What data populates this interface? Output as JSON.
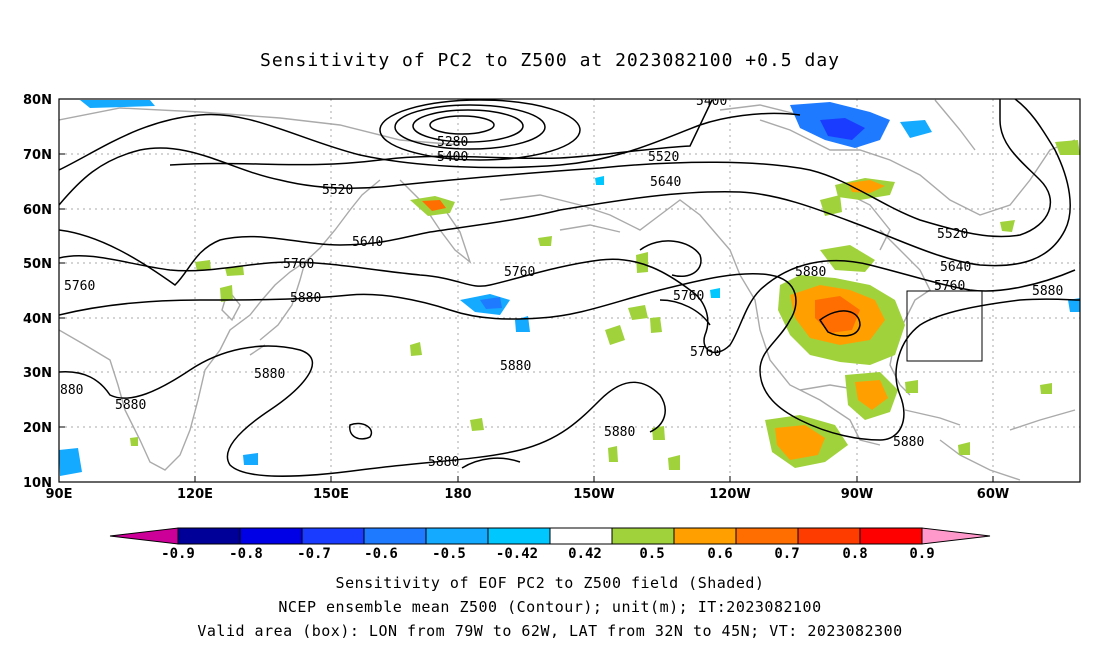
{
  "title": "Sensitivity of PC2 to Z500 at 2023082100 +0.5 day",
  "map": {
    "lat_labels": [
      "80N",
      "70N",
      "60N",
      "50N",
      "40N",
      "30N",
      "20N",
      "10N"
    ],
    "lon_labels": [
      "90E",
      "120E",
      "150E",
      "180",
      "150W",
      "120W",
      "90W",
      "60W"
    ],
    "contour_labels": [
      "5400",
      "5280",
      "5400",
      "5520",
      "5640",
      "5520",
      "5640",
      "5760",
      "5880",
      "5520",
      "5640",
      "5760",
      "5880",
      "5760",
      "5640",
      "5760",
      "5880",
      "5880",
      "5760",
      "5760",
      "5880",
      "5880",
      "5880",
      "5880",
      "880",
      "5880"
    ],
    "valid_box": {
      "lon": [
        -79,
        -62
      ],
      "lat": [
        32,
        45
      ]
    }
  },
  "colorbar": {
    "labels": [
      "-0.9",
      "-0.8",
      "-0.7",
      "-0.6",
      "-0.5",
      "-0.42",
      "0.42",
      "0.5",
      "0.6",
      "0.7",
      "0.8",
      "0.9"
    ],
    "colors": [
      "#000099",
      "#0000e6",
      "#1a3cff",
      "#1e7aff",
      "#14aaff",
      "#00c8ff",
      "#ffffff",
      "#a0d23c",
      "#ffa000",
      "#ff6e00",
      "#ff3c00",
      "#ff0000"
    ],
    "low_color": "#cc0099",
    "high_color": "#ff99cc"
  },
  "captions": [
    "Sensitivity of EOF PC2 to Z500 field (Shaded)",
    "NCEP ensemble mean Z500 (Contour); unit(m); IT:2023082100",
    "Valid area (box): LON from 79W to 62W, LAT from 32N to 45N; VT: 2023082300"
  ]
}
